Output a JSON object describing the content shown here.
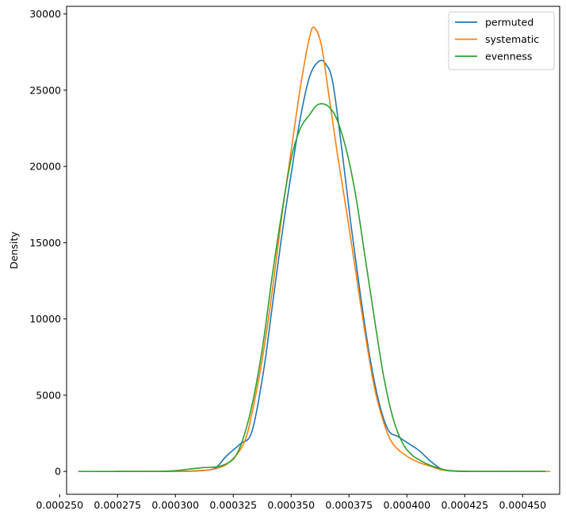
{
  "chart_data": {
    "type": "line",
    "title": "",
    "xlabel": "",
    "ylabel": "Density",
    "xlim": [
      0.000253,
      0.000466
    ],
    "ylim": [
      -1500,
      30500
    ],
    "xticks": [
      0.00025,
      0.000275,
      0.0003,
      0.000325,
      0.00035,
      0.000375,
      0.0004,
      0.000425,
      0.00045
    ],
    "xtick_labels": [
      "0.000250",
      "0.000275",
      "0.000300",
      "0.000325",
      "0.000350",
      "0.000375",
      "0.000400",
      "0.000425",
      "0.000450"
    ],
    "yticks": [
      0,
      5000,
      10000,
      15000,
      20000,
      25000,
      30000
    ],
    "ytick_labels": [
      "0",
      "5000",
      "10000",
      "15000",
      "20000",
      "25000",
      "30000"
    ],
    "grid": false,
    "legend_position": "top-right",
    "series": [
      {
        "name": "permuted",
        "color": "#1f77b4",
        "points": [
          [
            0.000275,
            0
          ],
          [
            0.0003,
            0
          ],
          [
            0.00031,
            50
          ],
          [
            0.000317,
            200
          ],
          [
            0.000322,
            1000
          ],
          [
            0.000328,
            1800
          ],
          [
            0.000333,
            2600
          ],
          [
            0.000338,
            6500
          ],
          [
            0.000342,
            11000
          ],
          [
            0.000346,
            15500
          ],
          [
            0.00035,
            19500
          ],
          [
            0.000354,
            23200
          ],
          [
            0.000358,
            25900
          ],
          [
            0.000362,
            26900
          ],
          [
            0.000365,
            26700
          ],
          [
            0.000368,
            25500
          ],
          [
            0.000372,
            21000
          ],
          [
            0.000376,
            16000
          ],
          [
            0.00038,
            11500
          ],
          [
            0.000384,
            7500
          ],
          [
            0.000388,
            4500
          ],
          [
            0.000392,
            2700
          ],
          [
            0.000396,
            2300
          ],
          [
            0.0004,
            1900
          ],
          [
            0.000405,
            1400
          ],
          [
            0.00041,
            700
          ],
          [
            0.000415,
            150
          ],
          [
            0.00042,
            20
          ],
          [
            0.00043,
            0
          ],
          [
            0.00046,
            0
          ]
        ]
      },
      {
        "name": "systematic",
        "color": "#ff7f0e",
        "points": [
          [
            0.000273,
            0
          ],
          [
            0.0003,
            0
          ],
          [
            0.00031,
            30
          ],
          [
            0.000318,
            200
          ],
          [
            0.000324,
            700
          ],
          [
            0.00033,
            2000
          ],
          [
            0.000334,
            4500
          ],
          [
            0.000338,
            7800
          ],
          [
            0.000342,
            12000
          ],
          [
            0.000346,
            16800
          ],
          [
            0.00035,
            21000
          ],
          [
            0.000354,
            25200
          ],
          [
            0.000358,
            28500
          ],
          [
            0.00036,
            29100
          ],
          [
            0.000363,
            28000
          ],
          [
            0.000366,
            25000
          ],
          [
            0.00037,
            20800
          ],
          [
            0.000374,
            17000
          ],
          [
            0.000378,
            13000
          ],
          [
            0.000382,
            9000
          ],
          [
            0.000386,
            5500
          ],
          [
            0.00039,
            3200
          ],
          [
            0.000394,
            1800
          ],
          [
            0.0004,
            1000
          ],
          [
            0.000405,
            600
          ],
          [
            0.00041,
            350
          ],
          [
            0.000415,
            100
          ],
          [
            0.00042,
            20
          ],
          [
            0.00043,
            0
          ],
          [
            0.000462,
            0
          ]
        ]
      },
      {
        "name": "evenness",
        "color": "#2ca02c",
        "points": [
          [
            0.000258,
            0
          ],
          [
            0.00029,
            0
          ],
          [
            0.0003,
            50
          ],
          [
            0.000306,
            150
          ],
          [
            0.000312,
            250
          ],
          [
            0.000318,
            300
          ],
          [
            0.000322,
            500
          ],
          [
            0.000326,
            1000
          ],
          [
            0.00033,
            2500
          ],
          [
            0.000334,
            5000
          ],
          [
            0.000338,
            8500
          ],
          [
            0.000342,
            13000
          ],
          [
            0.000346,
            17000
          ],
          [
            0.00035,
            20500
          ],
          [
            0.000354,
            22500
          ],
          [
            0.000358,
            23400
          ],
          [
            0.000361,
            24000
          ],
          [
            0.000364,
            24100
          ],
          [
            0.000367,
            23800
          ],
          [
            0.00037,
            23000
          ],
          [
            0.000374,
            21000
          ],
          [
            0.000378,
            18000
          ],
          [
            0.000382,
            14000
          ],
          [
            0.000386,
            10000
          ],
          [
            0.00039,
            6200
          ],
          [
            0.000394,
            3500
          ],
          [
            0.000398,
            1900
          ],
          [
            0.000402,
            1100
          ],
          [
            0.000406,
            700
          ],
          [
            0.00041,
            400
          ],
          [
            0.000414,
            200
          ],
          [
            0.000418,
            60
          ],
          [
            0.000425,
            10
          ],
          [
            0.00043,
            0
          ],
          [
            0.00046,
            0
          ]
        ]
      }
    ]
  }
}
